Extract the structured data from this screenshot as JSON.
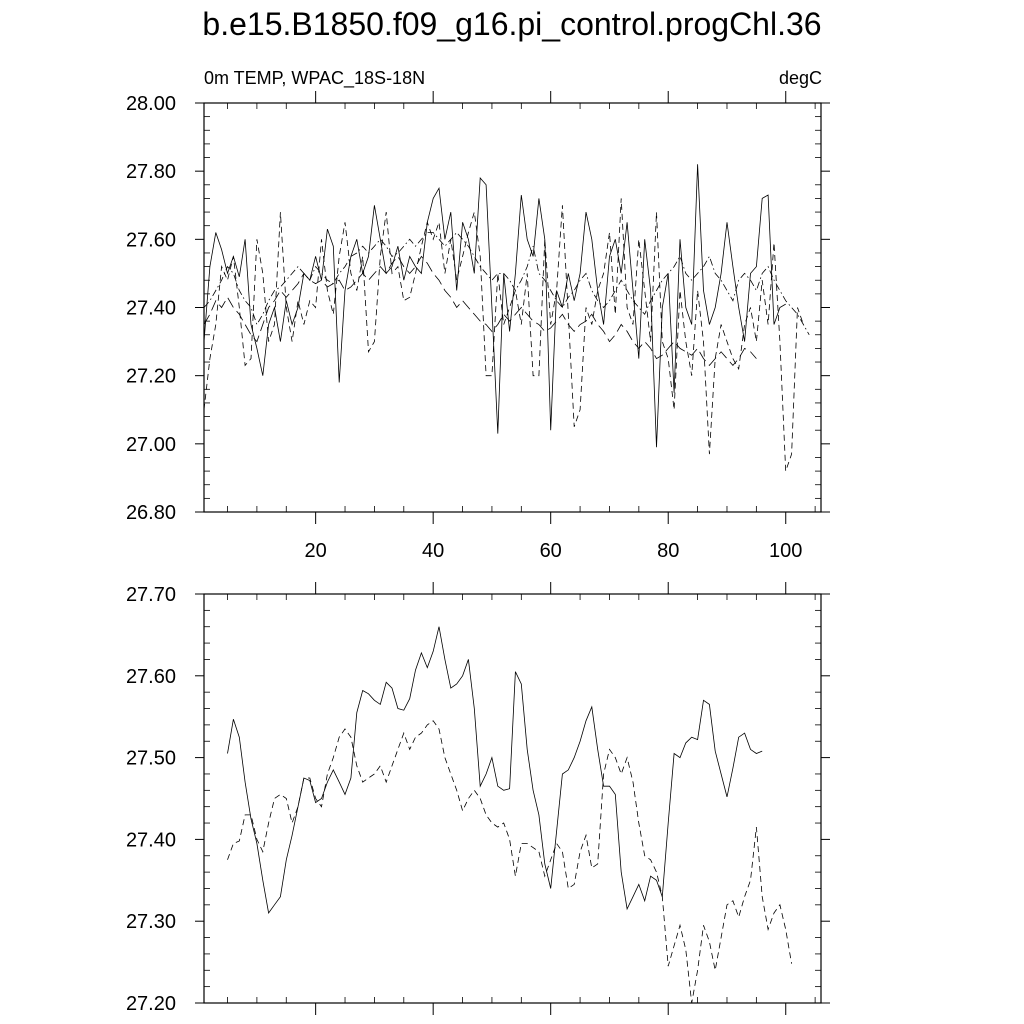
{
  "title": "b.e15.B1850.f09_g16.pi_control.progChl.36",
  "chart_data": [
    {
      "type": "line",
      "left_label": "0m TEMP, WPAC_18S-18N",
      "right_label": "degC",
      "xlim": [
        1,
        106
      ],
      "ylim": [
        26.8,
        28.0
      ],
      "x_ticks": [
        20,
        40,
        60,
        80,
        100
      ],
      "x_tick_labels": [
        "20",
        "40",
        "60",
        "80",
        "100"
      ],
      "y_ticks": [
        26.8,
        27.0,
        27.2,
        27.4,
        27.6,
        27.8,
        28.0
      ],
      "y_tick_labels": [
        "26.80",
        "27.00",
        "27.20",
        "27.40",
        "27.60",
        "27.80",
        "28.00"
      ],
      "series": [
        {
          "style": "solid",
          "x_start": 1,
          "values": [
            27.3,
            27.52,
            27.62,
            27.57,
            27.5,
            27.55,
            27.49,
            27.6,
            27.35,
            27.28,
            27.2,
            27.35,
            27.4,
            27.3,
            27.42,
            27.35,
            27.4,
            27.5,
            27.48,
            27.55,
            27.48,
            27.63,
            27.58,
            27.18,
            27.45,
            27.55,
            27.6,
            27.5,
            27.55,
            27.7,
            27.6,
            27.5,
            27.52,
            27.58,
            27.48,
            27.55,
            27.52,
            27.5,
            27.65,
            27.72,
            27.75,
            27.6,
            27.68,
            27.45,
            27.65,
            27.6,
            27.5,
            27.78,
            27.76,
            27.4,
            27.03,
            27.5,
            27.33,
            27.5,
            27.73,
            27.6,
            27.55,
            27.72,
            27.6,
            27.04,
            27.45,
            27.4,
            27.5,
            27.42,
            27.5,
            27.68,
            27.6,
            27.45,
            27.35,
            27.55,
            27.6,
            27.5,
            27.65,
            27.45,
            27.25,
            27.6,
            27.45,
            26.99,
            27.4,
            27.5,
            27.15,
            27.6,
            27.4,
            27.35,
            27.82,
            27.45,
            27.35,
            27.4,
            27.5,
            27.65,
            27.52,
            27.4,
            27.3,
            27.5,
            27.52,
            27.72,
            27.73,
            27.35,
            27.4,
            27.41
          ]
        },
        {
          "style": "dash",
          "x_start": 1,
          "values": [
            27.1,
            27.25,
            27.35,
            27.52,
            27.48,
            27.55,
            27.4,
            27.23,
            27.25,
            27.6,
            27.5,
            27.3,
            27.35,
            27.68,
            27.4,
            27.3,
            27.42,
            27.35,
            27.42,
            27.4,
            27.6,
            27.45,
            27.38,
            27.55,
            27.65,
            27.5,
            27.45,
            27.55,
            27.27,
            27.3,
            27.55,
            27.68,
            27.5,
            27.52,
            27.42,
            27.43,
            27.5,
            27.58,
            27.65,
            27.6,
            27.65,
            27.5,
            27.6,
            27.48,
            27.55,
            27.62,
            27.68,
            27.55,
            27.2,
            27.2,
            27.5,
            27.35,
            27.4,
            27.45,
            27.35,
            27.5,
            27.2,
            27.2,
            27.6,
            27.35,
            27.45,
            27.7,
            27.38,
            27.05,
            27.1,
            27.4,
            27.35,
            27.45,
            27.5,
            27.62,
            27.38,
            27.72,
            27.4,
            27.35,
            27.6,
            27.45,
            27.3,
            27.68,
            27.3,
            27.25,
            27.1,
            27.45,
            27.3,
            27.2,
            27.45,
            27.3,
            26.97,
            27.25,
            27.35,
            27.3,
            27.25,
            27.22,
            27.35,
            27.4,
            27.3,
            27.48,
            27.35,
            27.59,
            27.3,
            26.92,
            26.97,
            27.4,
            27.35
          ]
        },
        {
          "style": "dash-dot",
          "x_start": 1,
          "values": [
            27.4,
            27.42,
            27.45,
            27.48,
            27.52,
            27.5,
            27.45,
            27.42,
            27.4,
            27.35,
            27.38,
            27.42,
            27.45,
            27.46,
            27.48,
            27.5,
            27.52,
            27.5,
            27.48,
            27.52,
            27.5,
            27.48,
            27.47,
            27.5,
            27.52,
            27.55,
            27.56,
            27.58,
            27.56,
            27.58,
            27.6,
            27.58,
            27.55,
            27.56,
            27.58,
            27.6,
            27.58,
            27.6,
            27.62,
            27.62,
            27.6,
            27.58,
            27.6,
            27.62,
            27.6,
            27.58,
            27.55,
            27.52,
            27.5,
            27.48,
            27.5,
            27.5,
            27.48,
            27.45,
            27.48,
            27.52,
            27.58,
            27.5,
            27.48,
            27.45,
            27.42,
            27.4,
            27.43,
            27.45,
            27.48,
            27.5,
            27.45,
            27.42,
            27.4,
            27.42,
            27.45,
            27.48,
            27.45,
            27.42,
            27.4,
            27.38,
            27.42,
            27.45,
            27.48,
            27.5,
            27.52,
            27.55,
            27.5,
            27.48,
            27.5,
            27.52,
            27.55,
            27.5,
            27.48,
            27.45,
            27.42,
            27.48,
            27.5,
            27.48,
            27.45,
            27.5,
            27.52,
            27.48,
            27.45,
            27.42,
            27.4,
            27.38,
            27.35,
            27.32
          ]
        },
        {
          "style": "long-dash",
          "x_start": 1,
          "values": [
            27.35,
            27.38,
            27.42,
            27.4,
            27.43,
            27.4,
            27.38,
            27.35,
            27.32,
            27.3,
            27.35,
            27.4,
            27.42,
            27.45,
            27.43,
            27.45,
            27.47,
            27.5,
            27.48,
            27.47,
            27.48,
            27.46,
            27.47,
            27.48,
            27.45,
            27.46,
            27.48,
            27.5,
            27.48,
            27.5,
            27.52,
            27.5,
            27.53,
            27.55,
            27.52,
            27.5,
            27.52,
            27.55,
            27.53,
            27.5,
            27.48,
            27.45,
            27.43,
            27.4,
            27.42,
            27.4,
            27.38,
            27.36,
            27.35,
            27.33,
            27.35,
            27.38,
            27.36,
            27.38,
            27.4,
            27.38,
            27.36,
            27.35,
            27.33,
            27.34,
            27.36,
            27.38,
            27.35,
            27.33,
            27.35,
            27.36,
            27.38,
            27.35,
            27.33,
            27.3,
            27.32,
            27.35,
            27.33,
            27.3,
            27.28,
            27.3,
            27.28,
            27.25,
            27.26,
            27.28,
            27.3,
            27.28,
            27.27,
            27.26,
            27.28,
            27.25,
            27.23,
            27.25,
            27.27,
            27.25,
            27.23,
            27.25,
            27.28,
            27.27,
            27.25
          ]
        }
      ]
    },
    {
      "type": "line",
      "xlim": [
        1,
        106
      ],
      "ylim": [
        27.2,
        27.7
      ],
      "x_ticks": [
        20,
        40,
        60,
        80,
        100
      ],
      "y_ticks": [
        27.2,
        27.3,
        27.4,
        27.5,
        27.6,
        27.7
      ],
      "y_tick_labels": [
        "27.20",
        "27.30",
        "27.40",
        "27.50",
        "27.60",
        "27.70"
      ],
      "series": [
        {
          "style": "solid",
          "x_start": 5,
          "values": [
            27.505,
            27.547,
            27.525,
            27.47,
            27.425,
            27.395,
            27.35,
            27.31,
            27.32,
            27.33,
            27.375,
            27.405,
            27.44,
            27.475,
            27.472,
            27.445,
            27.45,
            27.47,
            27.485,
            27.47,
            27.455,
            27.475,
            27.555,
            27.582,
            27.578,
            27.57,
            27.565,
            27.592,
            27.585,
            27.56,
            27.558,
            27.572,
            27.607,
            27.628,
            27.61,
            27.63,
            27.66,
            27.62,
            27.585,
            27.59,
            27.6,
            27.62,
            27.56,
            27.465,
            27.48,
            27.5,
            27.465,
            27.46,
            27.462,
            27.605,
            27.59,
            27.51,
            27.46,
            27.43,
            27.37,
            27.34,
            27.41,
            27.48,
            27.485,
            27.5,
            27.52,
            27.545,
            27.562,
            27.51,
            27.465,
            27.465,
            27.455,
            27.36,
            27.315,
            27.33,
            27.345,
            27.325,
            27.355,
            27.35,
            27.33,
            27.42,
            27.505,
            27.5,
            27.518,
            27.525,
            27.522,
            27.57,
            27.565,
            27.508,
            27.48,
            27.452,
            27.487,
            27.525,
            27.53,
            27.51,
            27.505,
            27.508
          ]
        },
        {
          "style": "dash",
          "x_start": 5,
          "values": [
            27.375,
            27.395,
            27.398,
            27.43,
            27.43,
            27.4,
            27.385,
            27.42,
            27.45,
            27.455,
            27.45,
            27.42,
            27.44,
            27.475,
            27.475,
            27.45,
            27.44,
            27.48,
            27.5,
            27.525,
            27.535,
            27.525,
            27.49,
            27.47,
            27.475,
            27.48,
            27.49,
            27.47,
            27.49,
            27.51,
            27.53,
            27.51,
            27.525,
            27.53,
            27.54,
            27.545,
            27.535,
            27.5,
            27.48,
            27.46,
            27.435,
            27.45,
            27.46,
            27.45,
            27.43,
            27.42,
            27.415,
            27.42,
            27.4,
            27.355,
            27.395,
            27.395,
            27.39,
            27.385,
            27.355,
            27.375,
            27.395,
            27.385,
            27.34,
            27.345,
            27.385,
            27.405,
            27.365,
            27.37,
            27.48,
            27.51,
            27.5,
            27.48,
            27.5,
            27.47,
            27.42,
            27.38,
            27.375,
            27.36,
            27.33,
            27.245,
            27.27,
            27.295,
            27.265,
            27.2,
            27.24,
            27.295,
            27.275,
            27.24,
            27.28,
            27.32,
            27.325,
            27.305,
            27.33,
            27.35,
            27.415,
            27.33,
            27.29,
            27.31,
            27.32,
            27.29,
            27.248
          ]
        }
      ]
    }
  ]
}
